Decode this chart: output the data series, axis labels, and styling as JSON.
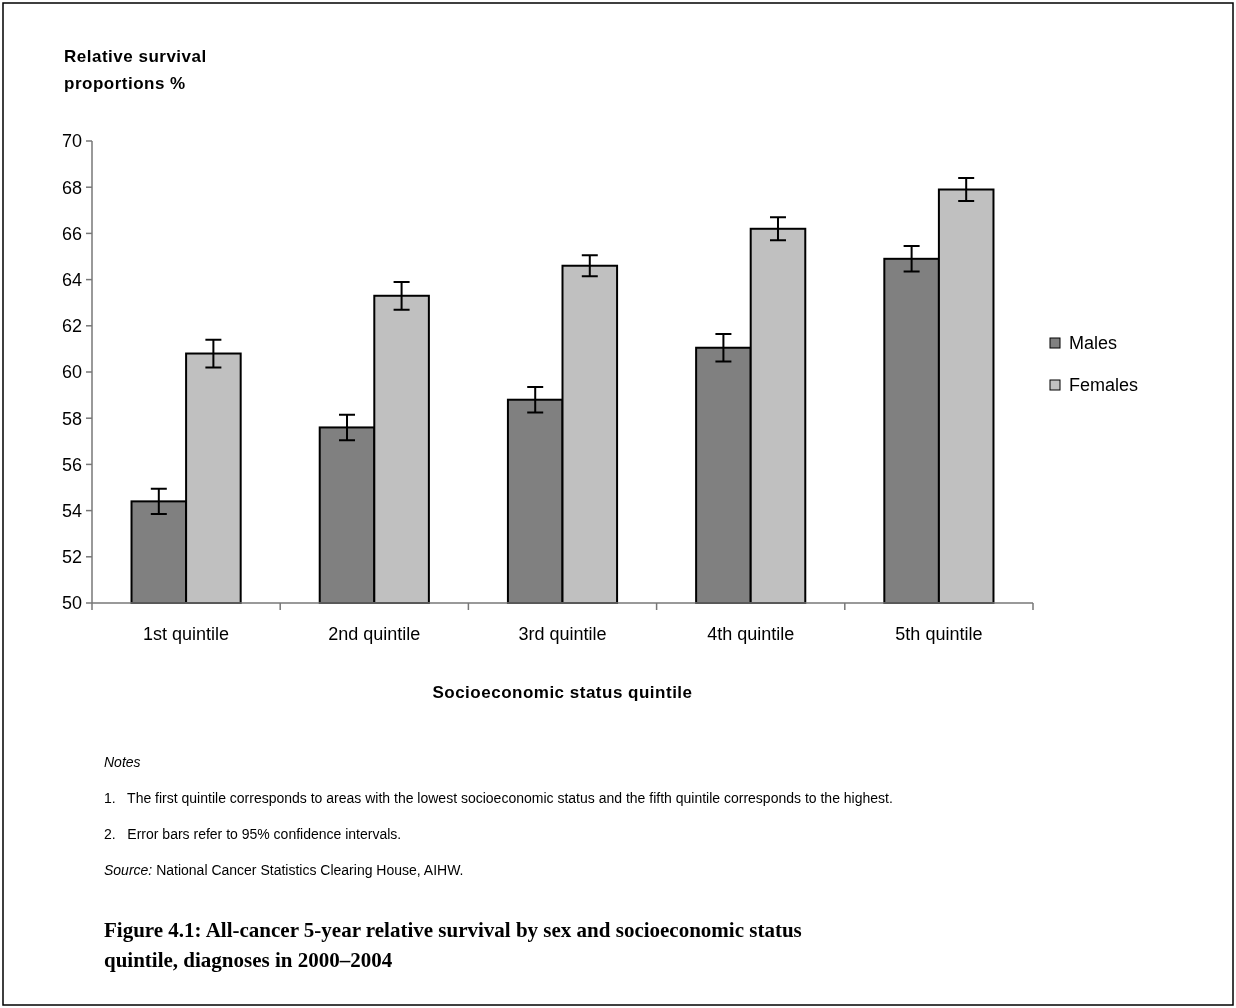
{
  "chart_data": {
    "type": "bar",
    "title": "Figure 4.1: All-cancer 5-year relative survival by sex and socioeconomic status quintile, diagnoses in 2000–2004",
    "xlabel": "Socioeconomic status quintile",
    "ylabel": "Relative survival proportions %",
    "categories": [
      "1st quintile",
      "2nd quintile",
      "3rd quintile",
      "4th quintile",
      "5th quintile"
    ],
    "series": [
      {
        "name": "Males",
        "color": "#808080",
        "values": [
          54.4,
          57.6,
          58.8,
          61.05,
          64.9
        ],
        "errors": [
          0.55,
          0.55,
          0.55,
          0.6,
          0.55
        ]
      },
      {
        "name": "Females",
        "color": "#c0c0c0",
        "values": [
          60.8,
          63.3,
          64.6,
          66.2,
          67.9
        ],
        "errors": [
          0.6,
          0.6,
          0.45,
          0.5,
          0.5
        ]
      }
    ],
    "ylim": [
      50,
      70
    ],
    "yticks": [
      50,
      52,
      54,
      56,
      58,
      60,
      62,
      64,
      66,
      68,
      70
    ],
    "grid": false,
    "legend": "right",
    "annotations": [
      "Notes",
      "1.   The first quintile corresponds to areas with the lowest socioeconomic status and the fifth quintile corresponds to the highest.",
      "2.   Error bars refer to 95% confidence intervals.",
      "Source: National Cancer Statistics Clearing House, AIHW."
    ]
  }
}
